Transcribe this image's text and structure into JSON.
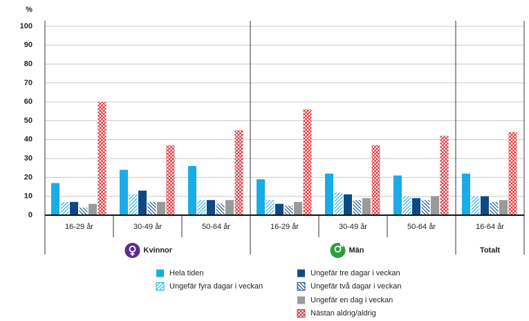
{
  "chart_data": {
    "type": "bar",
    "y_label": "%",
    "groups": [
      {
        "name": "Kvinnor",
        "color": "#5b2d8e",
        "categories": [
          "16-29 år",
          "30-49 år",
          "50-64 år"
        ]
      },
      {
        "name": "Män",
        "color": "#2e9e3e",
        "categories": [
          "16-29 år",
          "30-49 år",
          "50-64 år"
        ]
      },
      {
        "name": "Totalt",
        "categories": [
          "16-64 år"
        ]
      }
    ],
    "series": [
      {
        "name": "Hela tiden",
        "color": "#19ace6",
        "pattern": "solid",
        "values": [
          17,
          24,
          26,
          19,
          22,
          21,
          22
        ]
      },
      {
        "name": "Ungefär fyra dagar i veckan",
        "color": "#19ace6",
        "pattern": "hatch",
        "values": [
          7,
          11,
          8,
          8,
          12,
          10,
          10
        ]
      },
      {
        "name": "Ungefär tre dagar i veckan",
        "color": "#0c4a86",
        "pattern": "solid",
        "values": [
          7,
          13,
          8,
          6,
          11,
          9,
          10
        ]
      },
      {
        "name": "Ungefär två dagar i veckan",
        "color": "#0c4a86",
        "pattern": "backhatch",
        "values": [
          4,
          7,
          6,
          5,
          8,
          8,
          7
        ]
      },
      {
        "name": "Ungefär en dag i veckan",
        "color": "#9a9a9a",
        "pattern": "solid",
        "values": [
          6,
          7,
          8,
          7,
          9,
          10,
          8
        ]
      },
      {
        "name": "Nästan aldrig/aldrig",
        "color": "#e2262b",
        "pattern": "crosshatch",
        "values": [
          60,
          37,
          45,
          56,
          37,
          42,
          44
        ]
      }
    ],
    "ylim": [
      0,
      100
    ],
    "yticks": [
      0,
      10,
      20,
      30,
      40,
      50,
      60,
      70,
      80,
      90,
      100
    ],
    "grid": true
  }
}
